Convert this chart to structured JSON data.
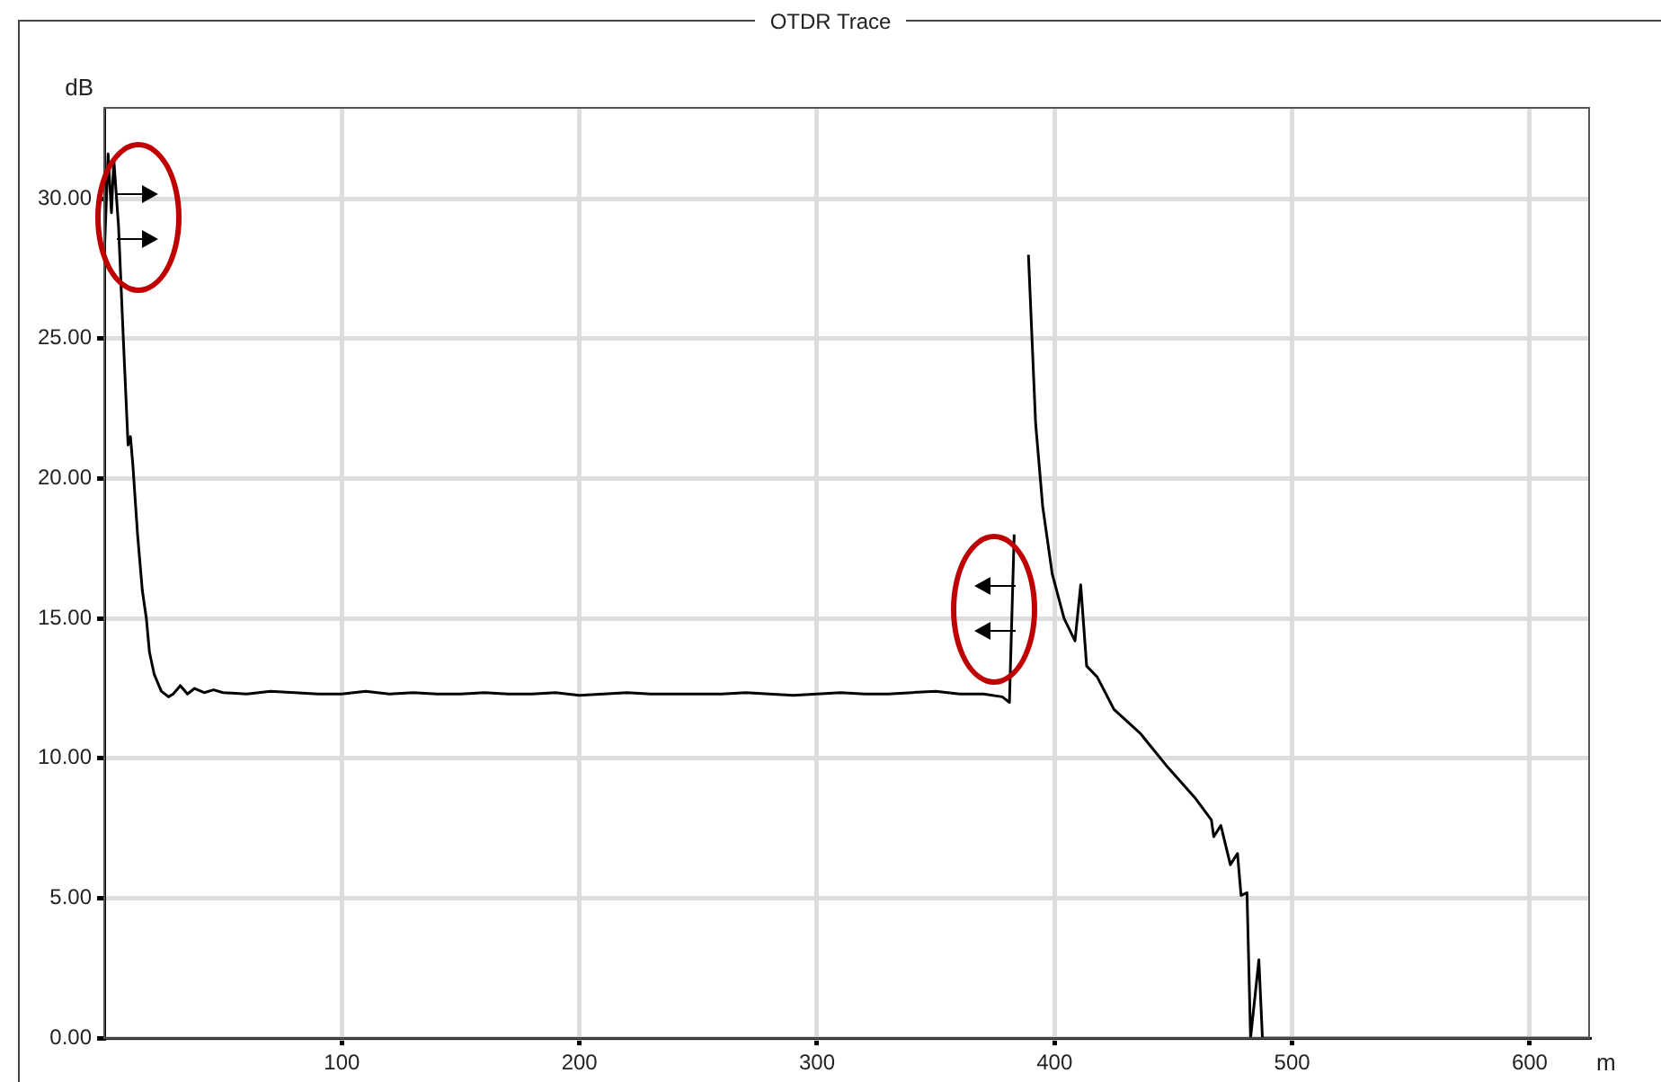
{
  "chart_data": {
    "type": "line",
    "title": "OTDR Trace",
    "xlabel": "m",
    "ylabel": "dB",
    "x": [
      0,
      1.6,
      3,
      4,
      6,
      8,
      10,
      11,
      12,
      14,
      16,
      17.7,
      19,
      21,
      24,
      27,
      29,
      32,
      35,
      38,
      42,
      46,
      50,
      60,
      70,
      80,
      90,
      100,
      110,
      120,
      130,
      140,
      150,
      160,
      170,
      180,
      190,
      200,
      210,
      220,
      230,
      240,
      250,
      260,
      270,
      280,
      290,
      300,
      310,
      320,
      330,
      340,
      350,
      360,
      370,
      378,
      381,
      383,
      385,
      387,
      389,
      392,
      395,
      399,
      404,
      408.6,
      411,
      413.5,
      418,
      425,
      436,
      447,
      459,
      466,
      467,
      470,
      474,
      477,
      478.5,
      481,
      482.5,
      486,
      487.5,
      500,
      550,
      625
    ],
    "series": [
      {
        "color": "#000000",
        "values": [
          28,
          31.6,
          29.5,
          31.4,
          29,
          25,
          21.2,
          21.5,
          20.5,
          18,
          16,
          15,
          13.8,
          13,
          12.4,
          12.2,
          12.3,
          12.6,
          12.3,
          12.5,
          12.35,
          12.45,
          12.35,
          12.3,
          12.4,
          12.35,
          12.3,
          12.3,
          12.4,
          12.3,
          12.35,
          12.3,
          12.3,
          12.35,
          12.3,
          12.3,
          12.35,
          12.25,
          12.3,
          12.35,
          12.3,
          12.3,
          12.3,
          12.3,
          12.35,
          12.3,
          12.25,
          12.3,
          12.35,
          12.3,
          12.3,
          12.35,
          12.4,
          12.3,
          12.3,
          12.2,
          12.0,
          18,
          null,
          null,
          28,
          22,
          19,
          16.6,
          15,
          14.2,
          16.2,
          13.3,
          12.9,
          11.75,
          10.9,
          9.75,
          8.6,
          7.8,
          7.2,
          7.6,
          6.2,
          6.6,
          5.1,
          5.2,
          0,
          2.8,
          0,
          0,
          0,
          0
        ]
      }
    ],
    "xlim": [
      0,
      625
    ],
    "xticks": [
      100,
      200,
      300,
      400,
      500,
      600
    ],
    "ylim": [
      0,
      33.25
    ],
    "yticks": [
      {
        "value": 0,
        "label": "0.00"
      },
      {
        "value": 5,
        "label": "5.00"
      },
      {
        "value": 10,
        "label": "10.00"
      },
      {
        "value": 15,
        "label": "15.00"
      },
      {
        "value": 20,
        "label": "20.00"
      },
      {
        "value": 25,
        "label": "25.00"
      },
      {
        "value": 30,
        "label": "30.00"
      }
    ],
    "grid": true,
    "legend": false,
    "marker": "none",
    "line_style": "solid"
  }
}
